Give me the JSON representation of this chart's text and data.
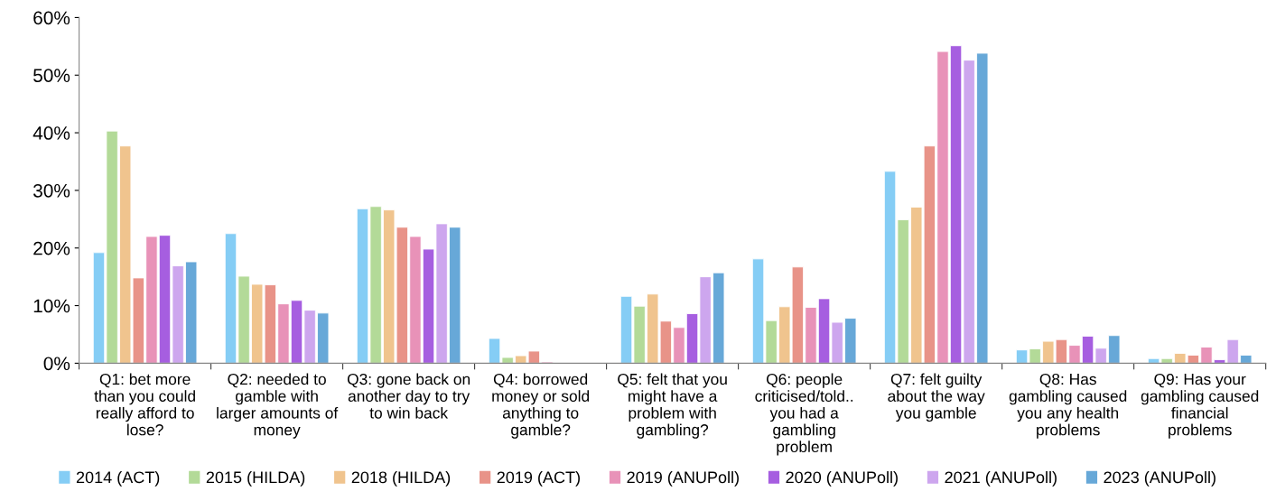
{
  "chart_data": {
    "type": "bar",
    "categories": [
      "Q1: bet more\nthan you could\nreally afford to\nlose?",
      "Q2: needed to\ngamble with\nlarger amounts of\nmoney",
      "Q3: gone back on\nanother day to try\nto win back",
      "Q4: borrowed\nmoney or sold\nanything to\ngamble?",
      "Q5: felt that you\nmight have a\nproblem with\ngambling?",
      "Q6: people\ncriticised/told..\nyou had a\ngambling\nproblem",
      "Q7: felt guilty\nabout the way\nyou gamble",
      "Q8: Has\ngambling caused\nyou any health\nproblems",
      "Q9: Has your\ngambling caused\nfinancial\nproblems"
    ],
    "series": [
      {
        "name": "2014 (ACT)",
        "color": "#85cdf5",
        "values": [
          19.2,
          22.5,
          26.8,
          4.3,
          11.6,
          18.1,
          33.3,
          2.3,
          0.8
        ]
      },
      {
        "name": "2015 (HILDA)",
        "color": "#b3da98",
        "values": [
          40.3,
          15.1,
          27.2,
          1.0,
          9.9,
          7.4,
          24.9,
          2.5,
          0.8
        ]
      },
      {
        "name": "2018 (HILDA)",
        "color": "#f0c48e",
        "values": [
          37.7,
          13.7,
          26.6,
          1.3,
          12.0,
          9.8,
          27.1,
          3.8,
          1.7
        ]
      },
      {
        "name": "2019 (ACT)",
        "color": "#e89388",
        "values": [
          14.8,
          13.6,
          23.6,
          2.1,
          7.3,
          16.7,
          37.7,
          4.1,
          1.4
        ]
      },
      {
        "name": "2019 (ANUPoll)",
        "color": "#e892b8",
        "values": [
          22.0,
          10.3,
          22.0,
          0.2,
          6.2,
          9.7,
          54.1,
          3.1,
          2.8
        ]
      },
      {
        "name": "2020 (ANUPoll)",
        "color": "#a65ee0",
        "values": [
          22.2,
          10.9,
          19.8,
          null,
          8.6,
          11.2,
          55.1,
          4.7,
          0.6
        ]
      },
      {
        "name": "2021 (ANUPoll)",
        "color": "#cda6ee",
        "values": [
          16.9,
          9.2,
          24.2,
          null,
          15.0,
          7.1,
          52.6,
          2.6,
          4.1
        ]
      },
      {
        "name": "2023 (ANUPoll)",
        "color": "#67a8d8",
        "values": [
          17.6,
          8.7,
          23.6,
          null,
          15.7,
          7.8,
          53.8,
          4.8,
          1.4
        ]
      }
    ],
    "ylim": [
      0,
      60
    ],
    "yticks": [
      {
        "value": 0,
        "label": "0%"
      },
      {
        "value": 10,
        "label": "10%"
      },
      {
        "value": 20,
        "label": "20%"
      },
      {
        "value": 30,
        "label": "30%"
      },
      {
        "value": 40,
        "label": "40%"
      },
      {
        "value": 50,
        "label": "50%"
      },
      {
        "value": 60,
        "label": "60%"
      }
    ],
    "grid": false,
    "legend": "bottom"
  }
}
